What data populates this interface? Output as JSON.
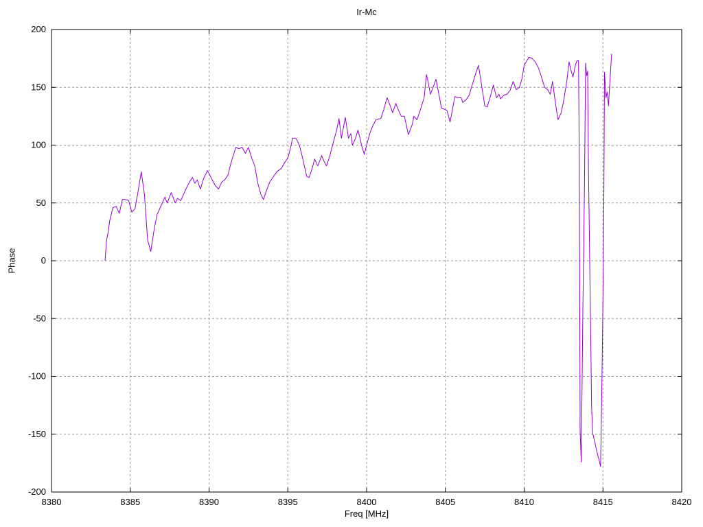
{
  "chart_data": {
    "type": "line",
    "title": "Ir-Mc",
    "xlabel": "Freq [MHz]",
    "ylabel": "Phase",
    "xlim": [
      8380,
      8420
    ],
    "ylim": [
      -200,
      200
    ],
    "xticks": [
      8380,
      8385,
      8390,
      8395,
      8400,
      8405,
      8410,
      8415,
      8420
    ],
    "yticks": [
      -200,
      -150,
      -100,
      -50,
      0,
      50,
      100,
      150,
      200
    ],
    "grid": "dashed",
    "grid_color": "#999999",
    "border_color": "#000000",
    "legend": "none",
    "series_name": "Phase",
    "line_color": "#9400D3",
    "points": [
      [
        8383.4,
        0
      ],
      [
        8383.5,
        18
      ],
      [
        8383.6,
        25
      ],
      [
        8383.7,
        35
      ],
      [
        8383.9,
        46
      ],
      [
        8384.1,
        47
      ],
      [
        8384.3,
        41
      ],
      [
        8384.5,
        53
      ],
      [
        8384.7,
        53
      ],
      [
        8384.9,
        52
      ],
      [
        8385.1,
        42
      ],
      [
        8385.3,
        45
      ],
      [
        8385.5,
        60
      ],
      [
        8385.7,
        77
      ],
      [
        8385.9,
        57
      ],
      [
        8386.1,
        18
      ],
      [
        8386.3,
        8
      ],
      [
        8386.5,
        26
      ],
      [
        8386.7,
        40
      ],
      [
        8386.9,
        46
      ],
      [
        8387.1,
        52
      ],
      [
        8387.2,
        55
      ],
      [
        8387.35,
        50
      ],
      [
        8387.6,
        59
      ],
      [
        8387.85,
        50
      ],
      [
        8388.0,
        54
      ],
      [
        8388.2,
        52
      ],
      [
        8388.4,
        58
      ],
      [
        8388.6,
        64
      ],
      [
        8388.8,
        69
      ],
      [
        8388.95,
        72
      ],
      [
        8389.1,
        67
      ],
      [
        8389.25,
        70
      ],
      [
        8389.45,
        62
      ],
      [
        8389.65,
        71
      ],
      [
        8389.9,
        78
      ],
      [
        8390.05,
        74
      ],
      [
        8390.2,
        70
      ],
      [
        8390.4,
        65
      ],
      [
        8390.6,
        62
      ],
      [
        8390.8,
        68
      ],
      [
        8391.0,
        70
      ],
      [
        8391.2,
        74
      ],
      [
        8391.4,
        85
      ],
      [
        8391.7,
        98
      ],
      [
        8391.9,
        97
      ],
      [
        8392.1,
        98
      ],
      [
        8392.3,
        93
      ],
      [
        8392.5,
        98
      ],
      [
        8392.7,
        89
      ],
      [
        8392.9,
        82
      ],
      [
        8393.1,
        67
      ],
      [
        8393.3,
        57
      ],
      [
        8393.45,
        53
      ],
      [
        8393.65,
        61
      ],
      [
        8393.85,
        68
      ],
      [
        8394.1,
        73
      ],
      [
        8394.3,
        77
      ],
      [
        8394.6,
        80
      ],
      [
        8394.8,
        85
      ],
      [
        8395.0,
        89
      ],
      [
        8395.2,
        99
      ],
      [
        8395.3,
        106
      ],
      [
        8395.5,
        106
      ],
      [
        8395.6,
        104
      ],
      [
        8395.75,
        99
      ],
      [
        8395.9,
        91
      ],
      [
        8396.05,
        82
      ],
      [
        8396.2,
        73
      ],
      [
        8396.35,
        72
      ],
      [
        8396.55,
        80
      ],
      [
        8396.7,
        88
      ],
      [
        8396.9,
        82
      ],
      [
        8397.15,
        91
      ],
      [
        8397.3,
        86
      ],
      [
        8397.45,
        82
      ],
      [
        8397.65,
        90
      ],
      [
        8397.9,
        103
      ],
      [
        8398.1,
        113
      ],
      [
        8398.25,
        123
      ],
      [
        8398.4,
        106
      ],
      [
        8398.65,
        124
      ],
      [
        8398.85,
        106
      ],
      [
        8399.0,
        110
      ],
      [
        8399.1,
        100
      ],
      [
        8399.3,
        106
      ],
      [
        8399.45,
        113
      ],
      [
        8399.6,
        105
      ],
      [
        8399.7,
        99
      ],
      [
        8399.85,
        92
      ],
      [
        8400.0,
        100
      ],
      [
        8400.2,
        110
      ],
      [
        8400.4,
        117
      ],
      [
        8400.6,
        122
      ],
      [
        8400.9,
        123
      ],
      [
        8401.1,
        131
      ],
      [
        8401.3,
        141
      ],
      [
        8401.5,
        134
      ],
      [
        8401.65,
        128
      ],
      [
        8401.85,
        136
      ],
      [
        8402.0,
        131
      ],
      [
        8402.2,
        125
      ],
      [
        8402.4,
        125
      ],
      [
        8402.65,
        109
      ],
      [
        8402.9,
        118
      ],
      [
        8403.0,
        125
      ],
      [
        8403.2,
        122
      ],
      [
        8403.4,
        130
      ],
      [
        8403.65,
        141
      ],
      [
        8403.8,
        161
      ],
      [
        8403.9,
        155
      ],
      [
        8404.05,
        144
      ],
      [
        8404.25,
        151
      ],
      [
        8404.4,
        157
      ],
      [
        8404.6,
        143
      ],
      [
        8404.75,
        132
      ],
      [
        8404.95,
        131
      ],
      [
        8405.1,
        130
      ],
      [
        8405.3,
        120
      ],
      [
        8405.45,
        131
      ],
      [
        8405.6,
        142
      ],
      [
        8405.8,
        141
      ],
      [
        8406.0,
        141
      ],
      [
        8406.1,
        137
      ],
      [
        8406.3,
        139
      ],
      [
        8406.5,
        143
      ],
      [
        8406.7,
        152
      ],
      [
        8406.9,
        161
      ],
      [
        8407.1,
        169
      ],
      [
        8407.3,
        152
      ],
      [
        8407.5,
        134
      ],
      [
        8407.65,
        133
      ],
      [
        8407.85,
        142
      ],
      [
        8408.05,
        152
      ],
      [
        8408.25,
        141
      ],
      [
        8408.4,
        144
      ],
      [
        8408.5,
        140
      ],
      [
        8408.7,
        143
      ],
      [
        8408.9,
        144
      ],
      [
        8409.1,
        147
      ],
      [
        8409.3,
        155
      ],
      [
        8409.5,
        148
      ],
      [
        8409.7,
        150
      ],
      [
        8409.85,
        157
      ],
      [
        8410.0,
        169
      ],
      [
        8410.3,
        176
      ],
      [
        8410.5,
        175
      ],
      [
        8410.7,
        172
      ],
      [
        8410.9,
        167
      ],
      [
        8411.1,
        159
      ],
      [
        8411.3,
        150
      ],
      [
        8411.5,
        148
      ],
      [
        8411.65,
        144
      ],
      [
        8411.8,
        155
      ],
      [
        8412.0,
        135
      ],
      [
        8412.15,
        122
      ],
      [
        8412.35,
        128
      ],
      [
        8412.5,
        138
      ],
      [
        8412.7,
        155
      ],
      [
        8412.85,
        172
      ],
      [
        8413.0,
        163
      ],
      [
        8413.1,
        159
      ],
      [
        8413.25,
        169
      ],
      [
        8413.35,
        173
      ],
      [
        8413.45,
        173
      ],
      [
        8413.5,
        87
      ],
      [
        8413.55,
        -147
      ],
      [
        8413.62,
        -174
      ],
      [
        8413.68,
        -100
      ],
      [
        8413.73,
        -38
      ],
      [
        8413.78,
        14
      ],
      [
        8413.83,
        68
      ],
      [
        8413.9,
        171
      ],
      [
        8413.97,
        160
      ],
      [
        8414.03,
        164
      ],
      [
        8414.08,
        82
      ],
      [
        8414.13,
        31
      ],
      [
        8414.18,
        -20
      ],
      [
        8414.23,
        -72
      ],
      [
        8414.28,
        -126
      ],
      [
        8414.35,
        -149
      ],
      [
        8414.45,
        -155
      ],
      [
        8414.55,
        -161
      ],
      [
        8414.65,
        -167
      ],
      [
        8414.75,
        -172
      ],
      [
        8414.85,
        -178
      ],
      [
        8414.92,
        -120
      ],
      [
        8414.97,
        -67
      ],
      [
        8415.02,
        -8
      ],
      [
        8415.06,
        59
      ],
      [
        8415.1,
        163
      ],
      [
        8415.2,
        141
      ],
      [
        8415.27,
        146
      ],
      [
        8415.35,
        134
      ],
      [
        8415.45,
        157
      ],
      [
        8415.55,
        179
      ]
    ]
  }
}
